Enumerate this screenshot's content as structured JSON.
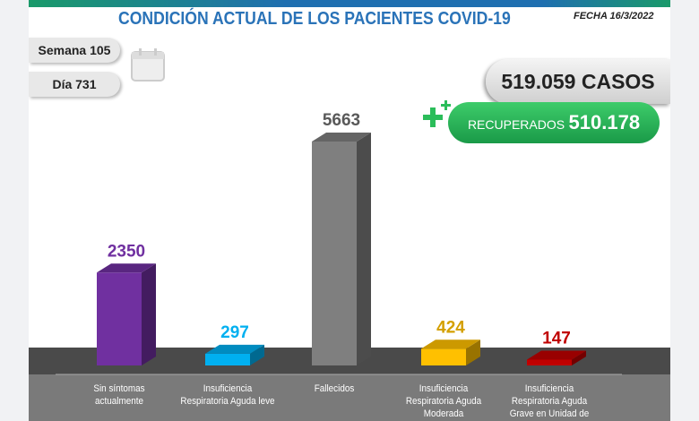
{
  "header": {
    "title": "CONDICIÓN ACTUAL DE LOS PACIENTES COVID-19",
    "fecha": "FECHA 16/3/2022"
  },
  "semana": "Semana 105",
  "dia": "Día 731",
  "casos": "519.059 CASOS",
  "recuperados": {
    "label": "RECUPERADOS",
    "value": "510.178"
  },
  "chart_data": {
    "type": "bar",
    "categories": [
      "Sin síntomas actualmente",
      "Insuficiencia Respiratoria Aguda leve",
      "Fallecidos",
      "Insuficiencia Respiratoria Aguda Moderada",
      "Insuficiencia Respiratoria Aguda Grave en Unidad de"
    ],
    "values": [
      2350,
      297,
      5663,
      424,
      147
    ],
    "labels": [
      "2350",
      "297",
      "5663",
      "424",
      "147"
    ],
    "colors": [
      "#7030a0",
      "#00b0f0",
      "#7f7f7f",
      "#ffc000",
      "#c00000"
    ],
    "label_colors": [
      "#7030a0",
      "#00b0f0",
      "#595959",
      "#d4a000",
      "#c00000"
    ]
  }
}
